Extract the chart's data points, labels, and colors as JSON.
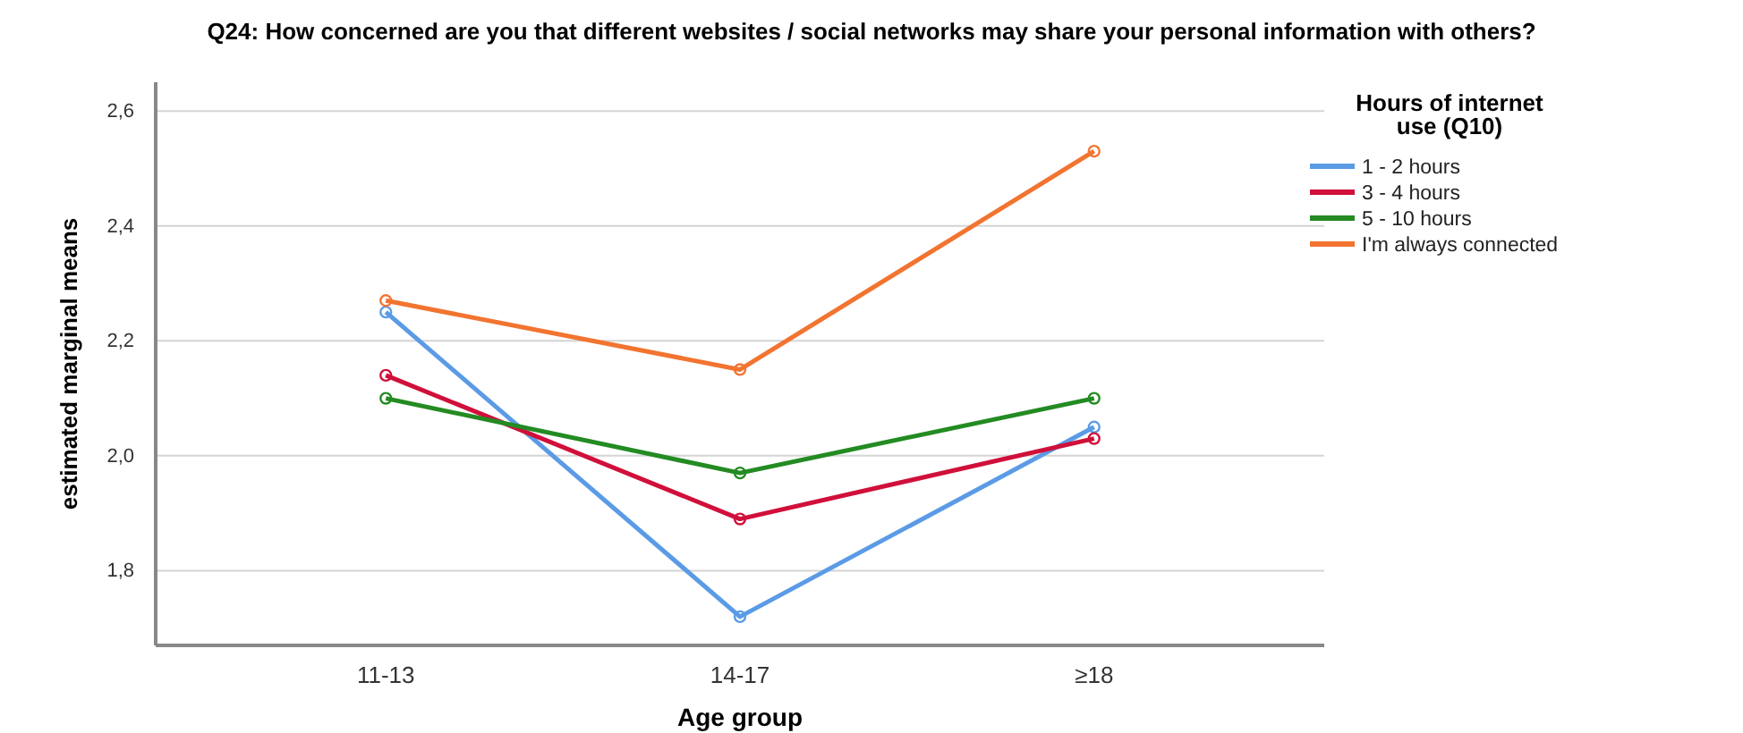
{
  "chart_data": {
    "type": "line",
    "title": "Q24: How concerned are you that different websites / social networks may share your personal information with others?",
    "xlabel": "Age group",
    "ylabel": "estimated marginal means",
    "legend_title": "Hours of internet use (Q10)",
    "categories": [
      "11-13",
      "14-17",
      "≥18"
    ],
    "series": [
      {
        "name": "1 - 2 hours",
        "color": "#5b9be6",
        "values": [
          2.25,
          1.72,
          2.05
        ]
      },
      {
        "name": "3 - 4 hours",
        "color": "#d0103a",
        "values": [
          2.14,
          1.89,
          2.03
        ]
      },
      {
        "name": "5 - 10 hours",
        "color": "#238b22",
        "values": [
          2.1,
          1.97,
          2.1
        ]
      },
      {
        "name": "I'm always connected",
        "color": "#f27430",
        "values": [
          2.27,
          2.15,
          2.53
        ]
      }
    ],
    "ylim": [
      1.67,
      2.65
    ],
    "yticks": [
      {
        "value": 1.8,
        "label": "1,8"
      },
      {
        "value": 2.0,
        "label": "2,0"
      },
      {
        "value": 2.2,
        "label": "2,2"
      },
      {
        "value": 2.4,
        "label": "2,4"
      },
      {
        "value": 2.6,
        "label": "2,6"
      }
    ],
    "grid": "y",
    "legend": "right",
    "marker": "circle",
    "line_style": "solid"
  }
}
